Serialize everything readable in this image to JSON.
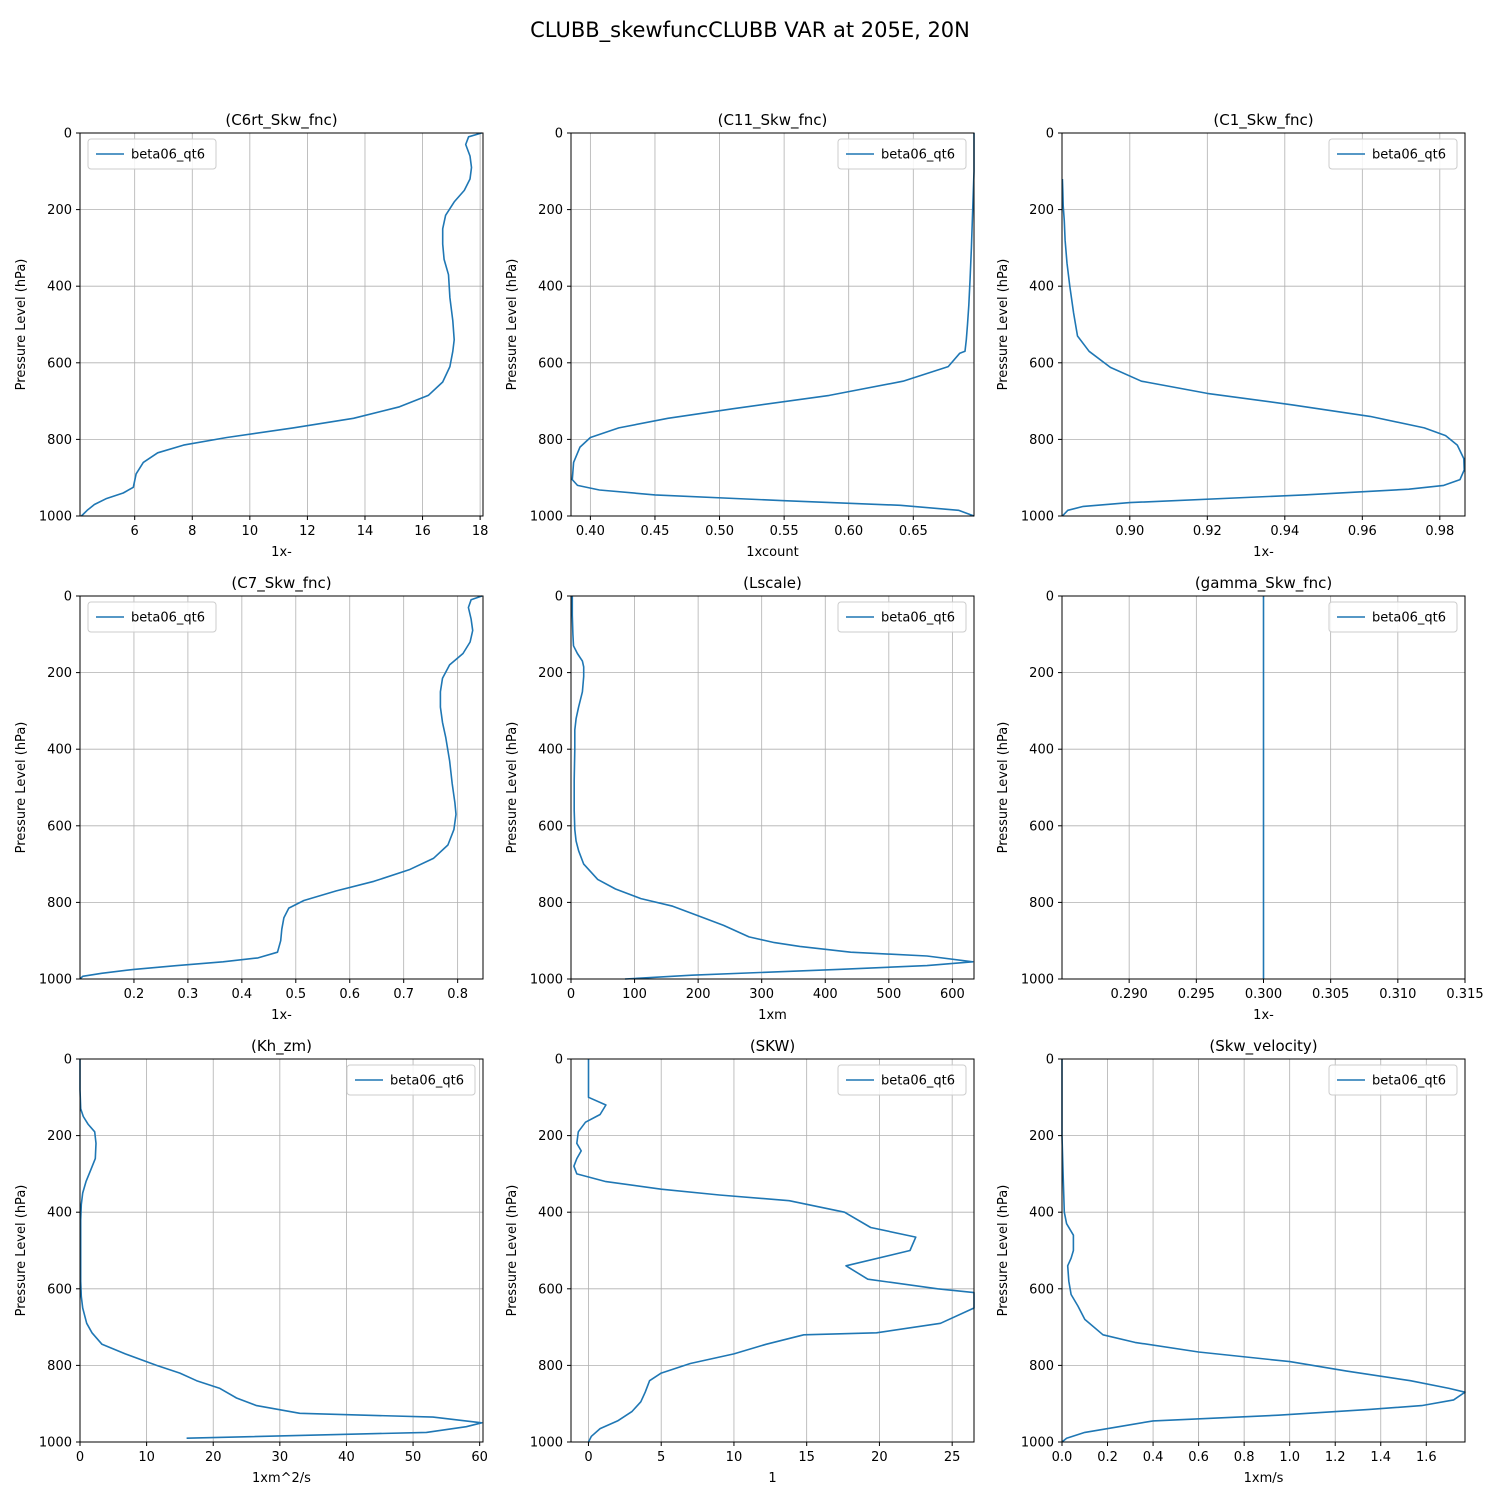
{
  "figure": {
    "title": "CLUBB_skewfuncCLUBB VAR at 205E, 20N",
    "line_color": "#1f77b4"
  },
  "chart_data": [
    {
      "type": "line",
      "title": "(C6rt_Skw_fnc)",
      "xlabel": "1x-",
      "ylabel": "Pressure Level (hPa)",
      "xlim": [
        4.1,
        18.1
      ],
      "ylim": [
        1000,
        0
      ],
      "xticks": [
        6,
        8,
        10,
        12,
        14,
        16,
        18
      ],
      "xtick_labels": [
        "6",
        "8",
        "10",
        "12",
        "14",
        "16",
        "18"
      ],
      "yticks": [
        0,
        200,
        400,
        600,
        800,
        1000
      ],
      "yticks_labels": [
        "0",
        "200",
        "400",
        "600",
        "800",
        "1000"
      ],
      "grid": true,
      "legend_position": "upper left",
      "series": [
        {
          "name": "beta06_qt6",
          "x": [
            18.05,
            17.6,
            17.5,
            17.65,
            17.7,
            17.65,
            17.45,
            17.1,
            16.8,
            16.7,
            16.7,
            16.75,
            16.9,
            16.95,
            17.05,
            17.1,
            17.05,
            16.95,
            16.7,
            16.2,
            15.2,
            13.6,
            11.5,
            9.2,
            7.7,
            6.8,
            6.3,
            6.05,
            5.95,
            5.6,
            5.0,
            4.6,
            4.35,
            4.15
          ],
          "y": [
            0,
            10,
            30,
            60,
            90,
            120,
            150,
            180,
            215,
            250,
            290,
            330,
            370,
            430,
            490,
            540,
            570,
            610,
            650,
            685,
            715,
            745,
            770,
            795,
            815,
            835,
            860,
            890,
            925,
            940,
            955,
            970,
            985,
            1000
          ]
        }
      ]
    },
    {
      "type": "line",
      "title": "(C11_Skw_fnc)",
      "xlabel": "1xcount",
      "ylabel": "Pressure Level (hPa)",
      "xlim": [
        0.385,
        0.697
      ],
      "ylim": [
        1000,
        0
      ],
      "xticks": [
        0.4,
        0.45,
        0.5,
        0.55,
        0.6,
        0.65
      ],
      "xtick_labels": [
        "0.40",
        "0.45",
        "0.50",
        "0.55",
        "0.60",
        "0.65"
      ],
      "yticks": [
        0,
        200,
        400,
        600,
        800,
        1000
      ],
      "yticks_labels": [
        "0",
        "200",
        "400",
        "600",
        "800",
        "1000"
      ],
      "grid": true,
      "legend_position": "upper right",
      "series": [
        {
          "name": "beta06_qt6",
          "x": [
            0.697,
            0.697,
            0.696,
            0.695,
            0.694,
            0.693,
            0.692,
            0.691,
            0.69,
            0.686,
            0.677,
            0.642,
            0.585,
            0.51,
            0.46,
            0.422,
            0.4,
            0.392,
            0.387,
            0.386,
            0.39,
            0.407,
            0.45,
            0.55,
            0.64,
            0.685,
            0.697
          ],
          "y": [
            0,
            100,
            200,
            300,
            380,
            450,
            500,
            540,
            570,
            575,
            610,
            648,
            685,
            720,
            745,
            770,
            795,
            820,
            860,
            905,
            920,
            932,
            945,
            960,
            972,
            985,
            1000
          ]
        }
      ]
    },
    {
      "type": "line",
      "title": "(C1_Skw_fnc)",
      "xlabel": "1x-",
      "ylabel": "Pressure Level (hPa)",
      "xlim": [
        0.8825,
        0.9865
      ],
      "ylim": [
        1000,
        0
      ],
      "xticks": [
        0.9,
        0.92,
        0.94,
        0.96,
        0.98
      ],
      "xtick_labels": [
        "0.90",
        "0.92",
        "0.94",
        "0.96",
        "0.98"
      ],
      "yticks": [
        0,
        200,
        400,
        600,
        800,
        1000
      ],
      "yticks_labels": [
        "0",
        "200",
        "400",
        "600",
        "800",
        "1000"
      ],
      "grid": true,
      "legend_position": "upper right",
      "series": [
        {
          "name": "beta06_qt6",
          "x": [
            0.8826,
            0.8827,
            0.8828,
            0.8831,
            0.8833,
            0.8838,
            0.8845,
            0.8855,
            0.8865,
            0.8895,
            0.895,
            0.903,
            0.92,
            0.942,
            0.962,
            0.976,
            0.9815,
            0.9845,
            0.9862,
            0.9863,
            0.9852,
            0.981,
            0.972,
            0.945,
            0.9,
            0.888,
            0.884,
            0.8826
          ],
          "y": [
            120,
            150,
            190,
            230,
            280,
            340,
            400,
            470,
            530,
            570,
            612,
            648,
            680,
            710,
            740,
            770,
            790,
            815,
            850,
            880,
            905,
            920,
            930,
            945,
            965,
            975,
            985,
            1000
          ]
        }
      ]
    },
    {
      "type": "line",
      "title": "(C7_Skw_fnc)",
      "xlabel": "1x-",
      "ylabel": "Pressure Level (hPa)",
      "xlim": [
        0.1,
        0.847
      ],
      "ylim": [
        1000,
        0
      ],
      "xticks": [
        0.2,
        0.3,
        0.4,
        0.5,
        0.6,
        0.7,
        0.8
      ],
      "xtick_labels": [
        "0.2",
        "0.3",
        "0.4",
        "0.5",
        "0.6",
        "0.7",
        "0.8"
      ],
      "yticks": [
        0,
        200,
        400,
        600,
        800,
        1000
      ],
      "yticks_labels": [
        "0",
        "200",
        "400",
        "600",
        "800",
        "1000"
      ],
      "grid": true,
      "legend_position": "upper left",
      "series": [
        {
          "name": "beta06_qt6",
          "x": [
            0.845,
            0.825,
            0.82,
            0.825,
            0.828,
            0.823,
            0.81,
            0.785,
            0.772,
            0.768,
            0.768,
            0.772,
            0.778,
            0.785,
            0.79,
            0.795,
            0.797,
            0.793,
            0.782,
            0.755,
            0.71,
            0.645,
            0.575,
            0.515,
            0.487,
            0.478,
            0.474,
            0.472,
            0.466,
            0.43,
            0.365,
            0.28,
            0.2,
            0.14,
            0.105,
            0.1
          ],
          "y": [
            0,
            10,
            30,
            60,
            90,
            120,
            150,
            180,
            215,
            250,
            290,
            330,
            370,
            430,
            490,
            540,
            570,
            610,
            650,
            685,
            715,
            745,
            770,
            795,
            815,
            840,
            870,
            900,
            930,
            945,
            955,
            965,
            975,
            985,
            993,
            1000
          ]
        }
      ]
    },
    {
      "type": "line",
      "title": "(Lscale)",
      "xlabel": "1xm",
      "ylabel": "Pressure Level (hPa)",
      "xlim": [
        0,
        634
      ],
      "ylim": [
        1000,
        0
      ],
      "xticks": [
        0,
        100,
        200,
        300,
        400,
        500,
        600
      ],
      "xtick_labels": [
        "0",
        "100",
        "200",
        "300",
        "400",
        "500",
        "600"
      ],
      "yticks": [
        0,
        200,
        400,
        600,
        800,
        1000
      ],
      "yticks_labels": [
        "0",
        "200",
        "400",
        "600",
        "800",
        "1000"
      ],
      "grid": true,
      "legend_position": "upper right",
      "series": [
        {
          "name": "beta06_qt6",
          "x": [
            2,
            2,
            3,
            4,
            10,
            18,
            20,
            20,
            18,
            12,
            8,
            6,
            6,
            5,
            5,
            6,
            8,
            12,
            20,
            42,
            70,
            110,
            160,
            200,
            240,
            280,
            320,
            360,
            440,
            560,
            632,
            560,
            420,
            190,
            85
          ],
          "y": [
            0,
            50,
            100,
            130,
            150,
            170,
            185,
            210,
            250,
            290,
            320,
            350,
            400,
            480,
            560,
            610,
            640,
            665,
            700,
            740,
            765,
            790,
            810,
            835,
            860,
            890,
            905,
            915,
            930,
            940,
            955,
            965,
            975,
            990,
            1000
          ]
        }
      ]
    },
    {
      "type": "line",
      "title": "(gamma_Skw_fnc)",
      "xlabel": "1x-",
      "ylabel": "Pressure Level (hPa)",
      "xlim": [
        0.285,
        0.315
      ],
      "ylim": [
        1000,
        0
      ],
      "xticks": [
        0.29,
        0.295,
        0.3,
        0.305,
        0.31,
        0.315
      ],
      "xtick_labels": [
        "0.290",
        "0.295",
        "0.300",
        "0.305",
        "0.310",
        "0.315"
      ],
      "yticks": [
        0,
        200,
        400,
        600,
        800,
        1000
      ],
      "yticks_labels": [
        "0",
        "200",
        "400",
        "600",
        "800",
        "1000"
      ],
      "grid": true,
      "legend_position": "upper right",
      "series": [
        {
          "name": "beta06_qt6",
          "x": [
            0.3,
            0.3
          ],
          "y": [
            0,
            1000
          ]
        }
      ]
    },
    {
      "type": "line",
      "title": "(Kh_zm)",
      "xlabel": "1xm^2/s",
      "ylabel": "Pressure Level (hPa)",
      "xlim": [
        0,
        60.5
      ],
      "ylim": [
        1000,
        0
      ],
      "xticks": [
        0,
        10,
        20,
        30,
        40,
        50,
        60
      ],
      "xtick_labels": [
        "0",
        "10",
        "20",
        "30",
        "40",
        "50",
        "60"
      ],
      "yticks": [
        0,
        200,
        400,
        600,
        800,
        1000
      ],
      "yticks_labels": [
        "0",
        "200",
        "400",
        "600",
        "800",
        "1000"
      ],
      "grid": true,
      "legend_position": "upper right",
      "series": [
        {
          "name": "beta06_qt6",
          "x": [
            0,
            0,
            0.1,
            0.5,
            1.2,
            2.2,
            2.4,
            2.3,
            1.6,
            0.9,
            0.4,
            0.2,
            0.1,
            0.1,
            0.1,
            0.2,
            0.4,
            1.0,
            1.8,
            3.3,
            6.8,
            11.5,
            15,
            17.5,
            21,
            23.5,
            26.5,
            33,
            53,
            60.3,
            58,
            52,
            16
          ],
          "y": [
            0,
            80,
            130,
            150,
            170,
            190,
            220,
            260,
            290,
            320,
            350,
            380,
            420,
            500,
            580,
            620,
            650,
            690,
            715,
            745,
            770,
            800,
            820,
            840,
            860,
            885,
            905,
            925,
            935,
            950,
            960,
            975,
            990
          ]
        }
      ]
    },
    {
      "type": "line",
      "title": "(SKW)",
      "xlabel": "1",
      "ylabel": "Pressure Level (hPa)",
      "xlim": [
        -1.2,
        26.5
      ],
      "ylim": [
        1000,
        0
      ],
      "xticks": [
        0,
        5,
        10,
        15,
        20,
        25
      ],
      "xtick_labels": [
        "0",
        "5",
        "10",
        "15",
        "20",
        "25"
      ],
      "yticks": [
        0,
        200,
        400,
        600,
        800,
        1000
      ],
      "yticks_labels": [
        "0",
        "200",
        "400",
        "600",
        "800",
        "1000"
      ],
      "grid": true,
      "legend_position": "upper right",
      "series": [
        {
          "name": "beta06_qt6",
          "x": [
            0,
            0,
            0,
            1.2,
            0.8,
            -0.2,
            -0.7,
            -0.8,
            -0.5,
            -0.8,
            -1.0,
            -0.8,
            1.2,
            5,
            9,
            13.8,
            17.6,
            19.4,
            22.5,
            22.1,
            17.7,
            19.2,
            24,
            26.5,
            26.5,
            24.2,
            19.8,
            14.8,
            12.2,
            10.0,
            7.0,
            5.0,
            4.2,
            3.9,
            3.6,
            3.0,
            2.0,
            0.8,
            0.2,
            0
          ],
          "y": [
            0,
            50,
            100,
            120,
            145,
            165,
            190,
            220,
            240,
            260,
            280,
            300,
            320,
            340,
            355,
            370,
            400,
            440,
            465,
            500,
            540,
            575,
            600,
            610,
            650,
            690,
            715,
            720,
            745,
            770,
            795,
            820,
            840,
            870,
            895,
            920,
            945,
            965,
            985,
            1000
          ]
        }
      ]
    },
    {
      "type": "line",
      "title": "(Skw_velocity)",
      "xlabel": "1xm/s",
      "ylabel": "Pressure Level (hPa)",
      "xlim": [
        0,
        1.77
      ],
      "ylim": [
        1000,
        0
      ],
      "xticks": [
        0,
        0.2,
        0.4,
        0.6,
        0.8,
        1.0,
        1.2,
        1.4,
        1.6
      ],
      "xtick_labels": [
        "0.0",
        "0.2",
        "0.4",
        "0.6",
        "0.8",
        "1.0",
        "1.2",
        "1.4",
        "1.6"
      ],
      "yticks": [
        0,
        200,
        400,
        600,
        800,
        1000
      ],
      "yticks_labels": [
        "0",
        "200",
        "400",
        "600",
        "800",
        "1000"
      ],
      "grid": true,
      "legend_position": "upper right",
      "series": [
        {
          "name": "beta06_qt6",
          "x": [
            0,
            0,
            0.005,
            0.01,
            0.02,
            0.05,
            0.05,
            0.04,
            0.025,
            0.03,
            0.04,
            0.07,
            0.1,
            0.18,
            0.32,
            0.6,
            1.0,
            1.25,
            1.53,
            1.7,
            1.77,
            1.72,
            1.58,
            1.35,
            0.95,
            0.4,
            0.25,
            0.1,
            0.02,
            0
          ],
          "y": [
            0,
            200,
            300,
            400,
            430,
            460,
            500,
            520,
            540,
            580,
            615,
            645,
            680,
            720,
            740,
            765,
            790,
            815,
            840,
            860,
            870,
            890,
            905,
            915,
            930,
            945,
            960,
            975,
            990,
            1000
          ]
        }
      ]
    }
  ]
}
